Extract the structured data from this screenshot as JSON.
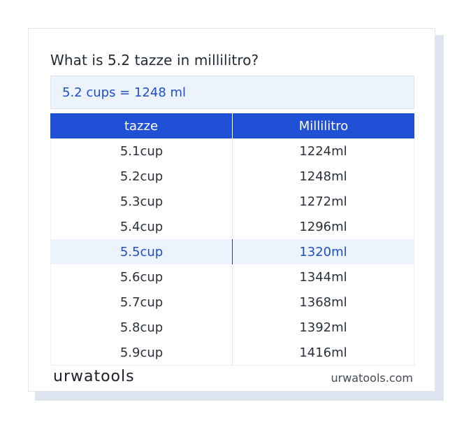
{
  "title": "What is 5.2 tazze in millilitro?",
  "result": "5.2 cups = 1248 ml",
  "table": {
    "headers": [
      "tazze",
      "Millilitro"
    ],
    "rows": [
      {
        "from": "5.1cup",
        "to": "1224ml"
      },
      {
        "from": "5.2cup",
        "to": "1248ml"
      },
      {
        "from": "5.3cup",
        "to": "1272ml"
      },
      {
        "from": "5.4cup",
        "to": "1296ml"
      },
      {
        "from": "5.5cup",
        "to": "1320ml"
      },
      {
        "from": "5.6cup",
        "to": "1344ml"
      },
      {
        "from": "5.7cup",
        "to": "1368ml"
      },
      {
        "from": "5.8cup",
        "to": "1392ml"
      },
      {
        "from": "5.9cup",
        "to": "1416ml"
      }
    ]
  },
  "footer": {
    "logo": "urwatools",
    "site": "urwatools.com"
  },
  "colors": {
    "accent": "#2050d6",
    "highlight_bg": "#ecf3fd",
    "highlight_text": "#1f4fc7"
  }
}
